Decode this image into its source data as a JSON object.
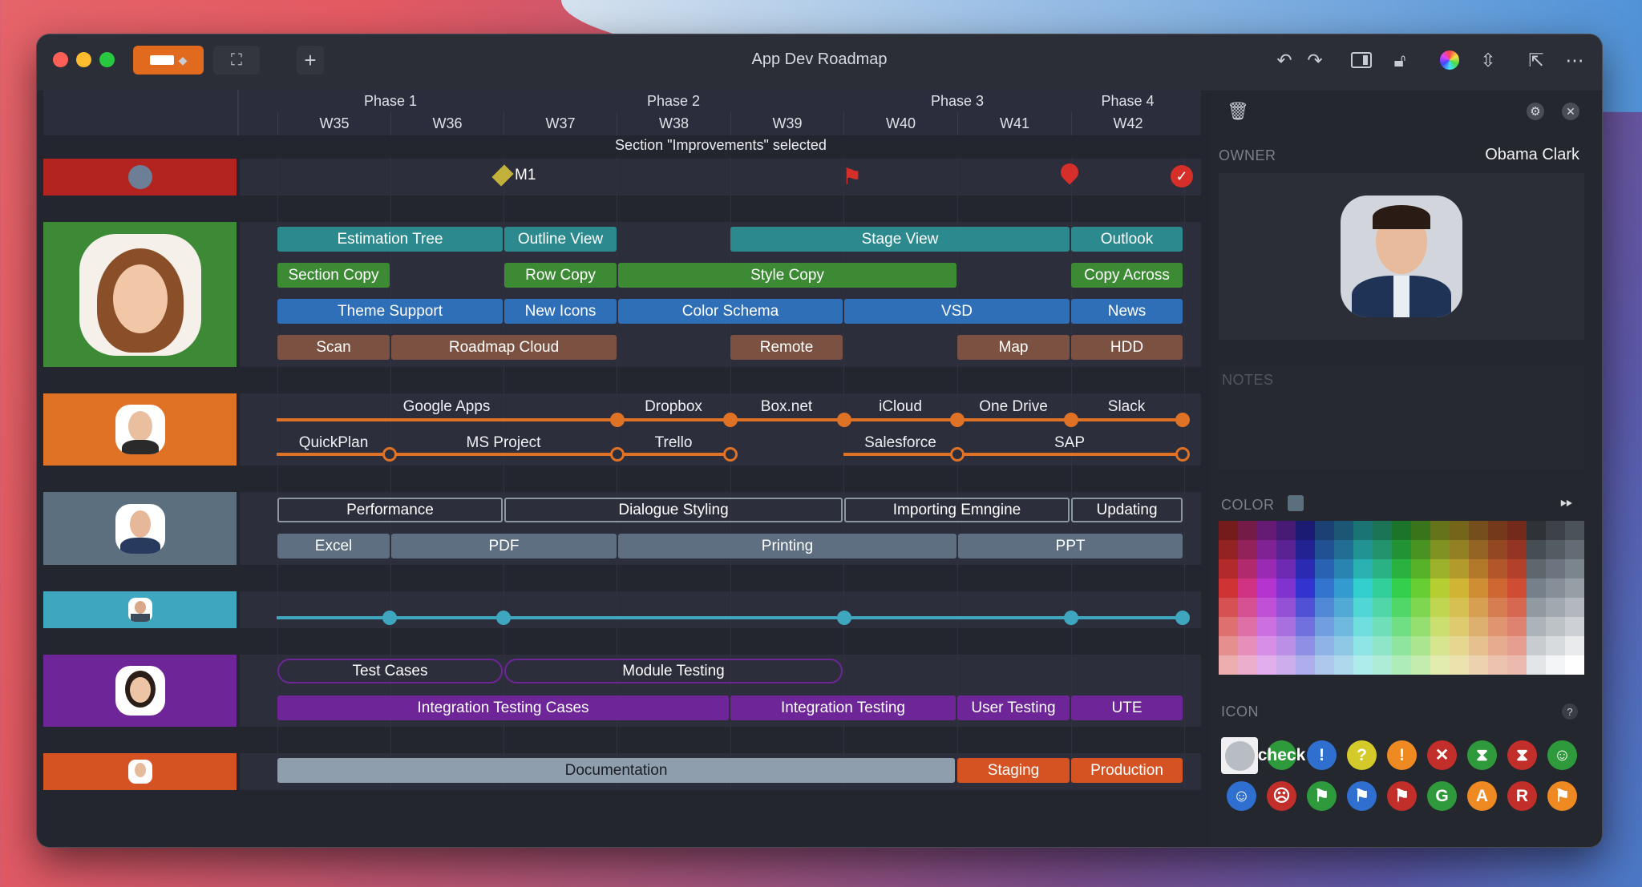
{
  "window": {
    "title": "App Dev Roadmap"
  },
  "header": {
    "phases": [
      "Phase 1",
      "Phase 2",
      "Phase 3",
      "Phase 4"
    ],
    "weeks": [
      "W35",
      "W36",
      "W37",
      "W38",
      "W39",
      "W40",
      "W41",
      "W42"
    ]
  },
  "selection": "Section \"Improvements\" selected",
  "milestone": {
    "label": "M1"
  },
  "rows": {
    "r1": {
      "bars": [
        "Estimation Tree",
        "Outline View",
        "Stage View",
        "Outlook"
      ]
    },
    "r2": {
      "bars": [
        "Section Copy",
        "Row Copy",
        "Style Copy",
        "Copy Across"
      ]
    },
    "r3": {
      "bars": [
        "Theme Support",
        "New Icons",
        "Color Schema",
        "VSD",
        "News"
      ]
    },
    "r4": {
      "bars": [
        "Scan",
        "Roadmap Cloud",
        "Remote",
        "Map",
        "HDD"
      ]
    },
    "t1": {
      "labels": [
        "Google Apps",
        "Dropbox",
        "Box.net",
        "iCloud",
        "One Drive",
        "Slack"
      ]
    },
    "t2": {
      "labels": [
        "QuickPlan",
        "MS Project",
        "Trello",
        "Salesforce",
        "SAP"
      ]
    },
    "g1": {
      "bars": [
        "Performance",
        "Dialogue Styling",
        "Importing Emngine",
        "Updating"
      ]
    },
    "g2": {
      "bars": [
        "Excel",
        "PDF",
        "Printing",
        "PPT"
      ]
    },
    "p1": {
      "bars": [
        "Test Cases",
        "Module Testing"
      ]
    },
    "p2": {
      "bars": [
        "Integration Testing Cases",
        "Integration Testing",
        "User Testing",
        "UTE"
      ]
    },
    "o1": {
      "bars": [
        "Documentation",
        "Staging",
        "Production"
      ]
    }
  },
  "panel": {
    "owner_label": "OWNER",
    "owner_name": "Obama Clark",
    "notes_label": "NOTES",
    "color_label": "COLOR",
    "icon_label": "ICON",
    "help": "?"
  },
  "colors": {
    "red": "#b3231f",
    "green": "#3c8a35",
    "orange": "#e07226",
    "slate": "#5c6f7f",
    "teal": "#3ea6bf",
    "purple": "#6d2598",
    "orangered": "#d55223"
  },
  "icons": [
    "circle",
    "check",
    "!",
    "?",
    "!",
    "✕",
    "⧗",
    "⧗",
    "☺",
    "☺",
    "☹",
    "⚑",
    "⚑",
    "⚑",
    "G",
    "A",
    "R",
    "⚑"
  ]
}
